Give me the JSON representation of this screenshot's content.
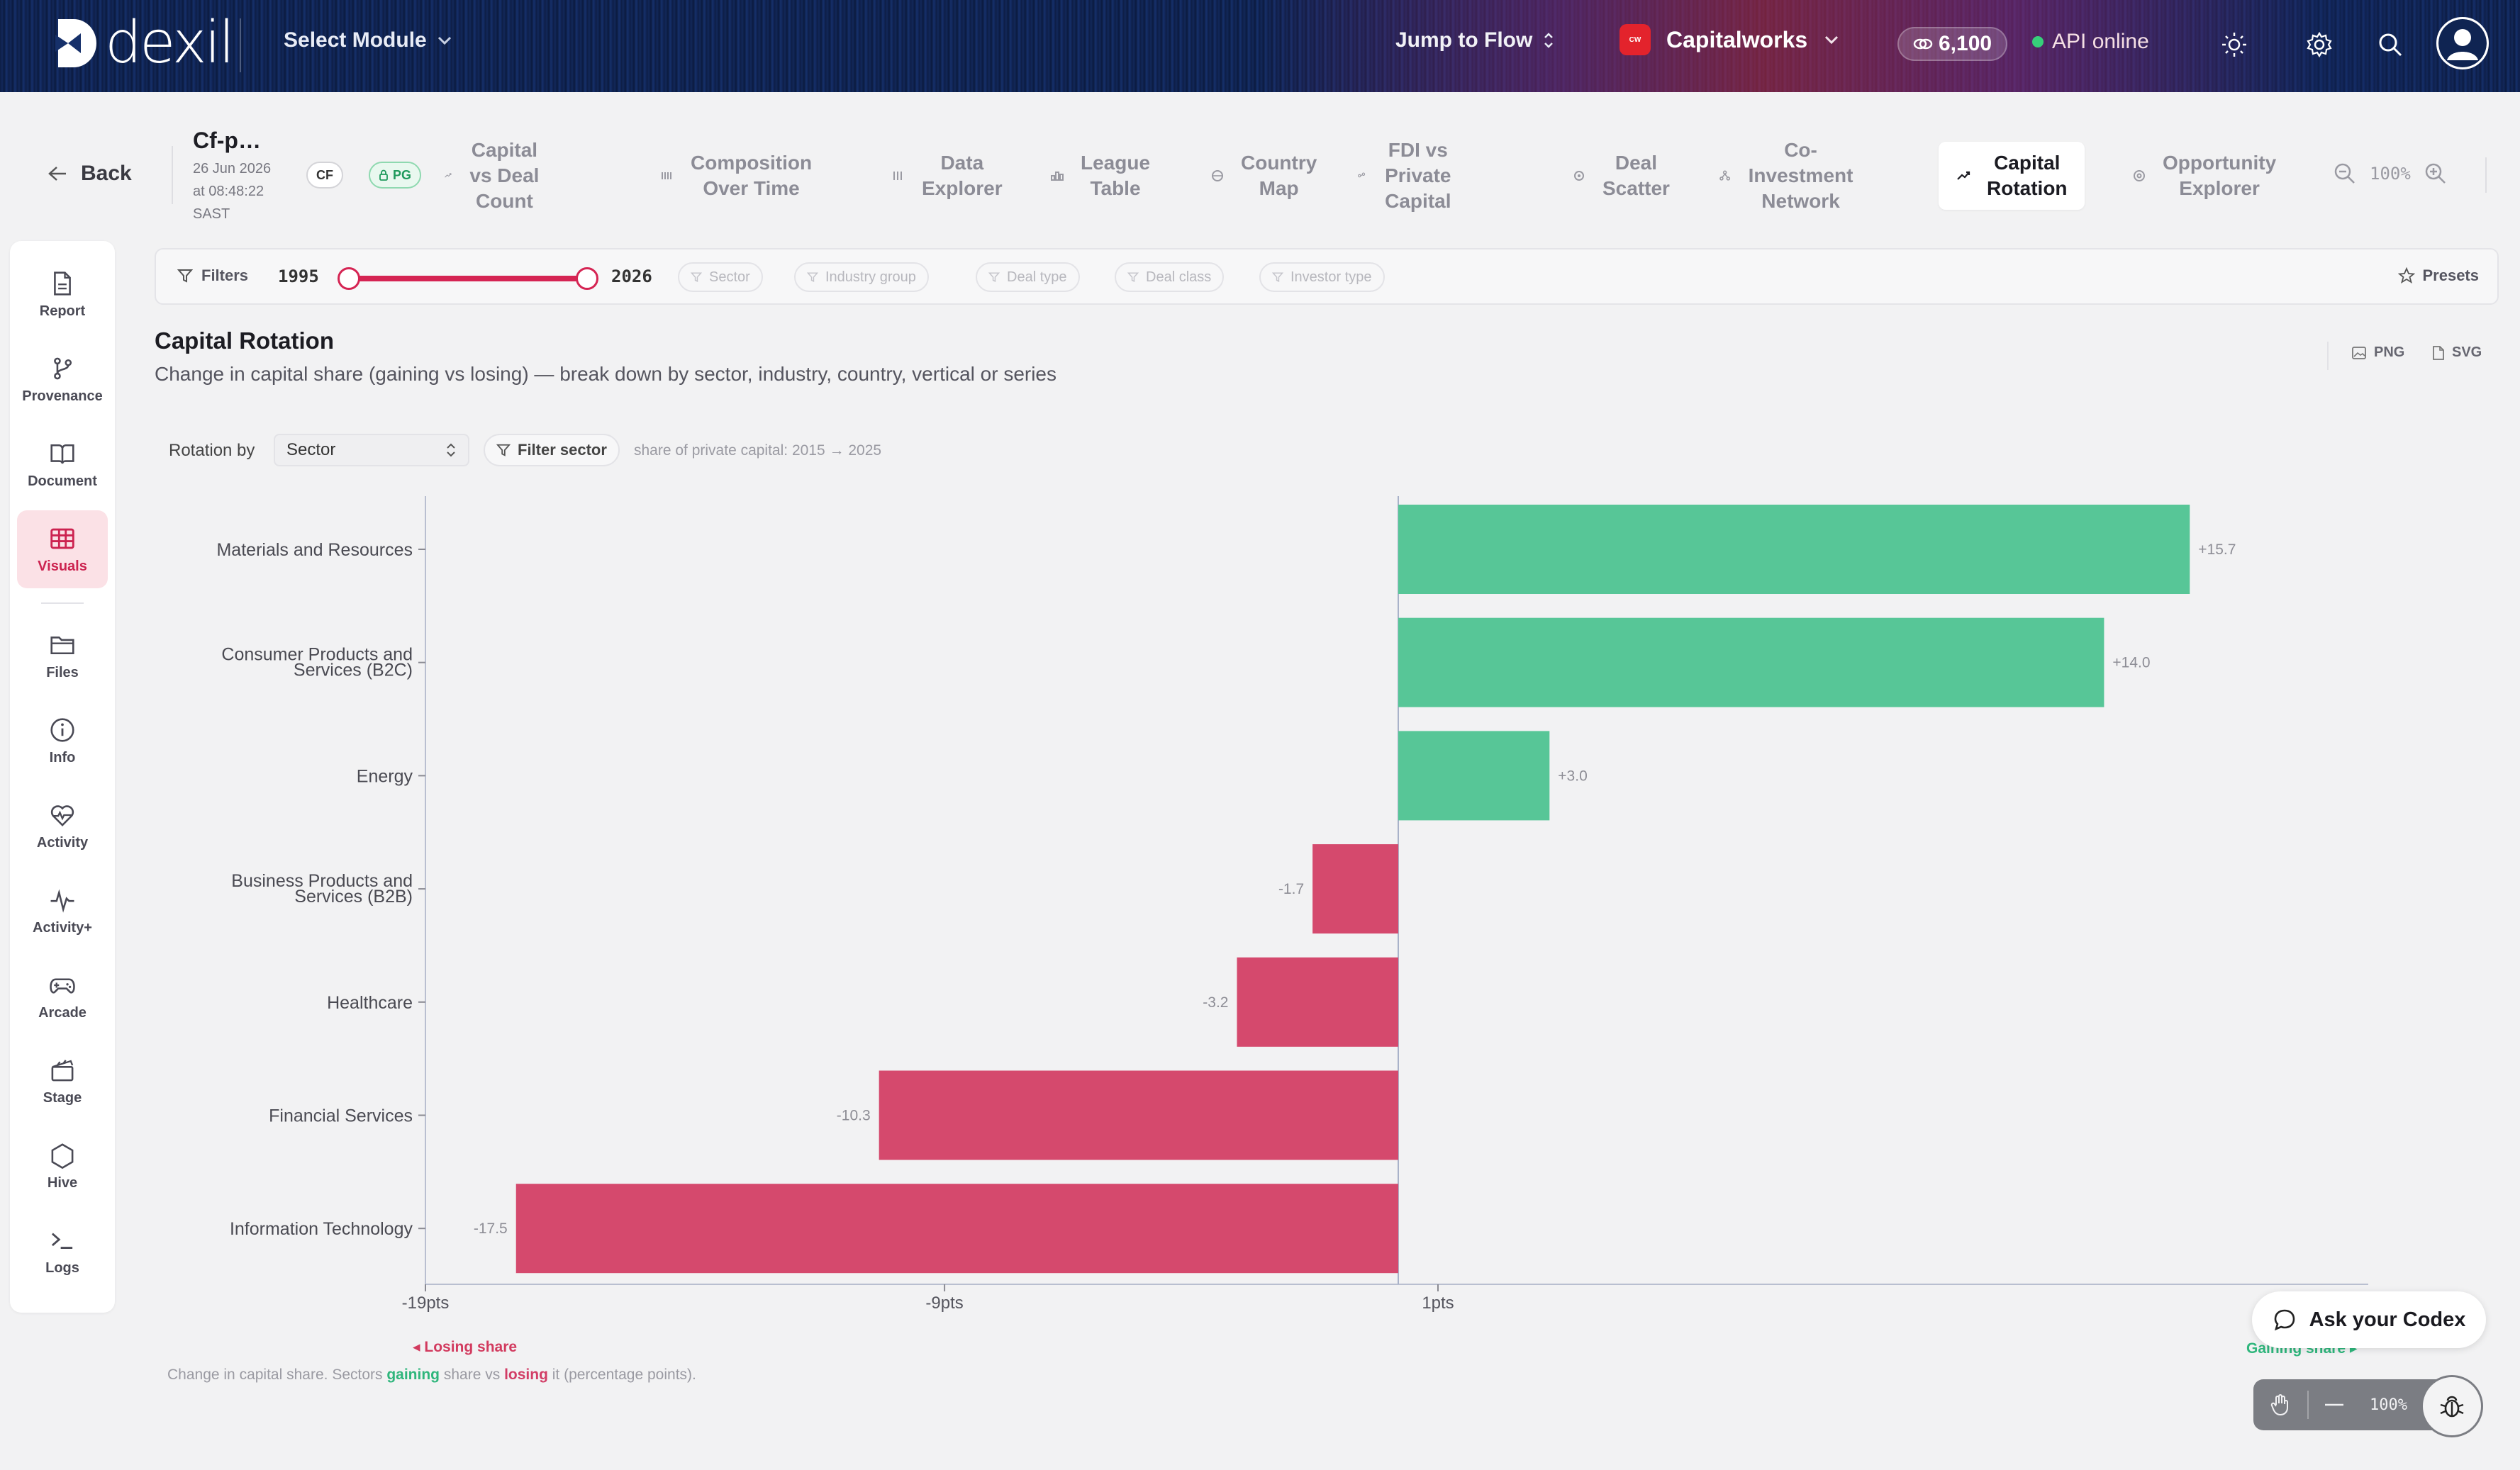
{
  "topbar": {
    "logo_text": "dexil",
    "select_module": "Select Module",
    "jump_to_flow": "Jump to Flow",
    "org_name": "Capitalworks",
    "credits": "6,100",
    "api_status": "API online"
  },
  "subbar": {
    "back_label": "Back",
    "doc_title": "Cf-p…",
    "doc_date": "26 Jun 2026",
    "doc_time": "at 08:48:22",
    "doc_tz": "SAST",
    "chip_cf": "CF",
    "chip_pg": "PG",
    "zoom": "100%",
    "tabs": [
      {
        "label_1": "Capital vs Deal",
        "label_2": "Count",
        "icon": "trend-icon"
      },
      {
        "label_1": "Composition",
        "label_2": "Over Time",
        "icon": "bars-icon"
      },
      {
        "label_1": "Data",
        "label_2": "Explorer",
        "icon": "table-icon"
      },
      {
        "label_1": "League",
        "label_2": "Table",
        "icon": "league-icon"
      },
      {
        "label_1": "Country",
        "label_2": "Map",
        "icon": "globe-icon"
      },
      {
        "label_1": "FDI vs Private",
        "label_2": "Capital",
        "icon": "compare-icon"
      },
      {
        "label_1": "Deal",
        "label_2": "Scatter",
        "icon": "scatter-icon"
      },
      {
        "label_1": "Co-Investment",
        "label_2": "Network",
        "icon": "network-icon"
      },
      {
        "label_1": "Capital",
        "label_2": "Rotation",
        "icon": "rotation-icon",
        "active": true
      },
      {
        "label_1": "Opportunity",
        "label_2": "Explorer",
        "icon": "target-icon"
      }
    ]
  },
  "rail": {
    "items": [
      {
        "label": "Report",
        "icon": "report-icon"
      },
      {
        "label": "Provenance",
        "icon": "provenance-icon"
      },
      {
        "label": "Document",
        "icon": "book-icon"
      },
      {
        "label": "Visuals",
        "icon": "grid-icon",
        "active": true
      },
      {
        "label": "Files",
        "icon": "folder-icon"
      },
      {
        "label": "Info",
        "icon": "info-icon"
      },
      {
        "label": "Activity",
        "icon": "heart-icon"
      },
      {
        "label": "Activity+",
        "icon": "pulse-icon"
      },
      {
        "label": "Arcade",
        "icon": "gamepad-icon"
      },
      {
        "label": "Stage",
        "icon": "clapper-icon"
      },
      {
        "label": "Hive",
        "icon": "hexagon-icon"
      },
      {
        "label": "Logs",
        "icon": "terminal-icon"
      }
    ]
  },
  "filters": {
    "label": "Filters",
    "year_from": "1995",
    "year_to": "2026",
    "range_fraction": [
      0.0,
      1.0
    ],
    "chips": [
      "Sector",
      "Industry group",
      "Deal type",
      "Deal class",
      "Investor type"
    ],
    "presets": "Presets"
  },
  "chart_header": {
    "title": "Capital Rotation",
    "subtitle": "Change in capital share (gaining vs losing) — break down by sector, industry, country, vertical or series",
    "export_png": "PNG",
    "export_svg": "SVG",
    "rotation_by_label": "Rotation by",
    "rotation_by_value": "Sector",
    "filter_sector": "Filter sector",
    "hint": "share of private capital: 2015 → 2025"
  },
  "chart_data": {
    "type": "bar",
    "orientation": "horizontal",
    "categories": [
      "Materials and Resources",
      "Consumer Products and Services (B2C)",
      "Energy",
      "Business Products and Services (B2B)",
      "Healthcare",
      "Financial Services",
      "Information Technology"
    ],
    "values": [
      15.7,
      14.0,
      3.0,
      -1.7,
      -3.2,
      -10.3,
      -17.5
    ],
    "data_labels": [
      "+15.7",
      "+14.0",
      "+3.0",
      "-1.7",
      "-3.2",
      "-10.3",
      "-17.5"
    ],
    "x_ticks": [
      {
        "value": -19,
        "label": "-19pts"
      },
      {
        "value": -9,
        "label": "-9pts"
      },
      {
        "value": 1,
        "label": "1pts"
      }
    ],
    "xlim": [
      -19.5,
      20.5
    ],
    "colors": {
      "positive": "#57c697",
      "negative": "#d5496d",
      "axis": "#a9b2c9"
    },
    "losing_label": "◂ Losing share",
    "gaining_label": "Gaining share ▸"
  },
  "caption": {
    "prefix": "Change in capital share. Sectors ",
    "gaining": "gaining",
    "middle": " share vs ",
    "losing": "losing",
    "suffix": " it (percentage points)."
  },
  "floating": {
    "ask_codex": "Ask your Codex",
    "zoom": "100%"
  }
}
